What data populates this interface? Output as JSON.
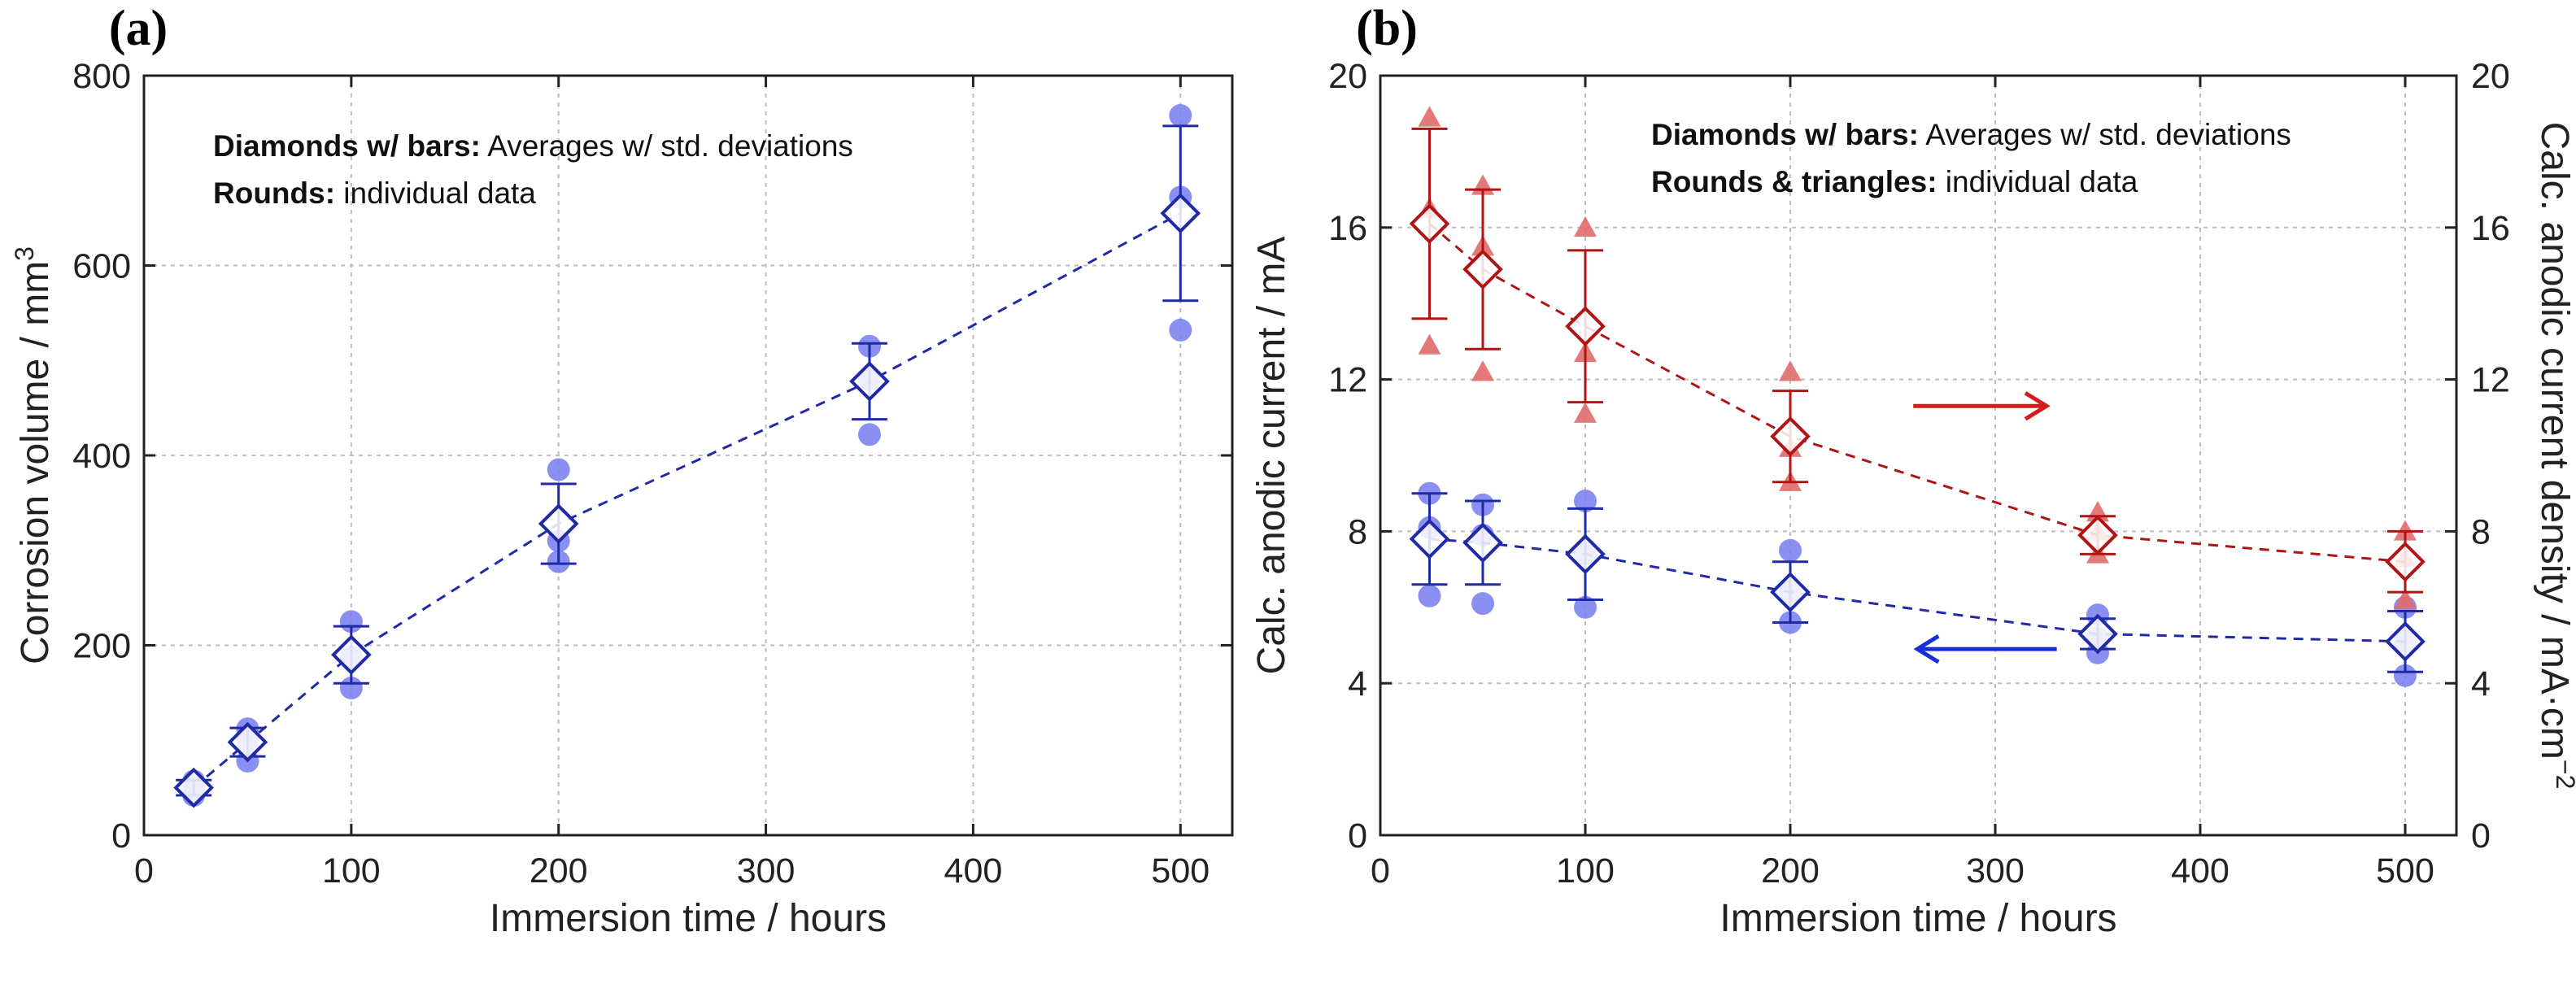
{
  "chart_data": [
    {
      "panel": "(a)",
      "type": "scatter",
      "xlabel": "Immersion time / hours",
      "ylabel": "Corrosion volume / mm",
      "ylabel_sup": "3",
      "xlim": [
        0,
        525
      ],
      "ylim": [
        0,
        800
      ],
      "xticks": [
        0,
        100,
        200,
        300,
        400,
        500
      ],
      "yticks": [
        0,
        200,
        400,
        600,
        800
      ],
      "grid": true,
      "annotations": [
        {
          "bold": "Diamonds w/ bars:",
          "text": " Averages w/ std. deviations"
        },
        {
          "bold": "Rounds:",
          "text": " individual data"
        }
      ],
      "series": [
        {
          "role": "average",
          "marker": "diamond",
          "color": "#1f2aa6",
          "x": [
            24,
            50,
            100,
            200,
            350,
            500
          ],
          "y": [
            50,
            98,
            190,
            328,
            478,
            655
          ],
          "yerr": [
            8,
            15,
            30,
            42,
            40,
            92
          ]
        },
        {
          "role": "individual",
          "marker": "circle",
          "color": "#7a7ff0",
          "x": [
            24,
            24,
            24,
            50,
            50,
            50,
            100,
            100,
            100,
            200,
            200,
            200,
            350,
            350,
            350,
            500,
            500,
            500
          ],
          "y": [
            42,
            50,
            57,
            78,
            100,
            112,
            155,
            188,
            225,
            288,
            310,
            385,
            422,
            480,
            515,
            532,
            672,
            758
          ]
        }
      ],
      "fit_line": {
        "color": "#1f2aa6",
        "x": [
          24,
          50,
          100,
          200,
          350,
          500
        ],
        "y": [
          50,
          98,
          190,
          328,
          478,
          655
        ]
      }
    },
    {
      "panel": "(b)",
      "type": "scatter",
      "xlabel": "Immersion time / hours",
      "ylabel": "Calc. anodic current / mA",
      "y2label": "Calc. anodic current density / mA·cm",
      "y2label_sup": "−2",
      "xlim": [
        0,
        525
      ],
      "ylim": [
        0,
        20
      ],
      "y2lim": [
        0,
        20
      ],
      "xticks": [
        0,
        100,
        200,
        300,
        400,
        500
      ],
      "yticks": [
        0,
        4,
        8,
        12,
        16,
        20
      ],
      "y2ticks": [
        0,
        4,
        8,
        12,
        16,
        20
      ],
      "grid": true,
      "annotations": [
        {
          "bold": "Diamonds w/ bars:",
          "text": " Averages w/ std. deviations"
        },
        {
          "bold": "Rounds & triangles:",
          "text": " individual data"
        }
      ],
      "series": [
        {
          "role": "average-current",
          "axis": "left",
          "marker": "diamond",
          "color": "#1f2aa6",
          "x": [
            24,
            50,
            100,
            200,
            350,
            500
          ],
          "y": [
            7.8,
            7.7,
            7.4,
            6.4,
            5.3,
            5.1
          ],
          "yerr": [
            1.2,
            1.1,
            1.2,
            0.8,
            0.4,
            0.8
          ]
        },
        {
          "role": "individual-current",
          "axis": "left",
          "marker": "circle",
          "color": "#7a7ff0",
          "x": [
            24,
            24,
            24,
            50,
            50,
            50,
            100,
            100,
            100,
            200,
            200,
            200,
            350,
            350,
            350,
            500,
            500,
            500
          ],
          "y": [
            6.3,
            8.1,
            9.0,
            6.1,
            7.9,
            8.7,
            6.0,
            7.4,
            8.8,
            5.6,
            6.4,
            7.5,
            4.8,
            5.2,
            5.8,
            4.2,
            5.1,
            6.0
          ]
        },
        {
          "role": "average-density",
          "axis": "right",
          "marker": "diamond",
          "color": "#b01515",
          "x": [
            24,
            50,
            100,
            200,
            350,
            500
          ],
          "y": [
            16.1,
            14.9,
            13.4,
            10.5,
            7.9,
            7.2
          ],
          "yerr": [
            2.5,
            2.1,
            2.0,
            1.2,
            0.5,
            0.8
          ]
        },
        {
          "role": "individual-density",
          "axis": "right",
          "marker": "triangle",
          "color": "#e06a6a",
          "x": [
            24,
            24,
            24,
            50,
            50,
            50,
            100,
            100,
            100,
            200,
            200,
            200,
            350,
            350,
            350,
            500,
            500,
            500
          ],
          "y": [
            12.9,
            16.5,
            18.9,
            12.2,
            15.5,
            17.1,
            11.1,
            12.7,
            16.0,
            9.3,
            10.2,
            12.2,
            7.4,
            8.0,
            8.5,
            6.2,
            7.3,
            8.0
          ]
        }
      ],
      "arrows": [
        {
          "direction": "right",
          "color": "#d41c1c",
          "x": [
            260,
            325
          ],
          "y": 11.3
        },
        {
          "direction": "left",
          "color": "#1530d8",
          "x": [
            330,
            262
          ],
          "y": 4.9
        }
      ]
    }
  ]
}
